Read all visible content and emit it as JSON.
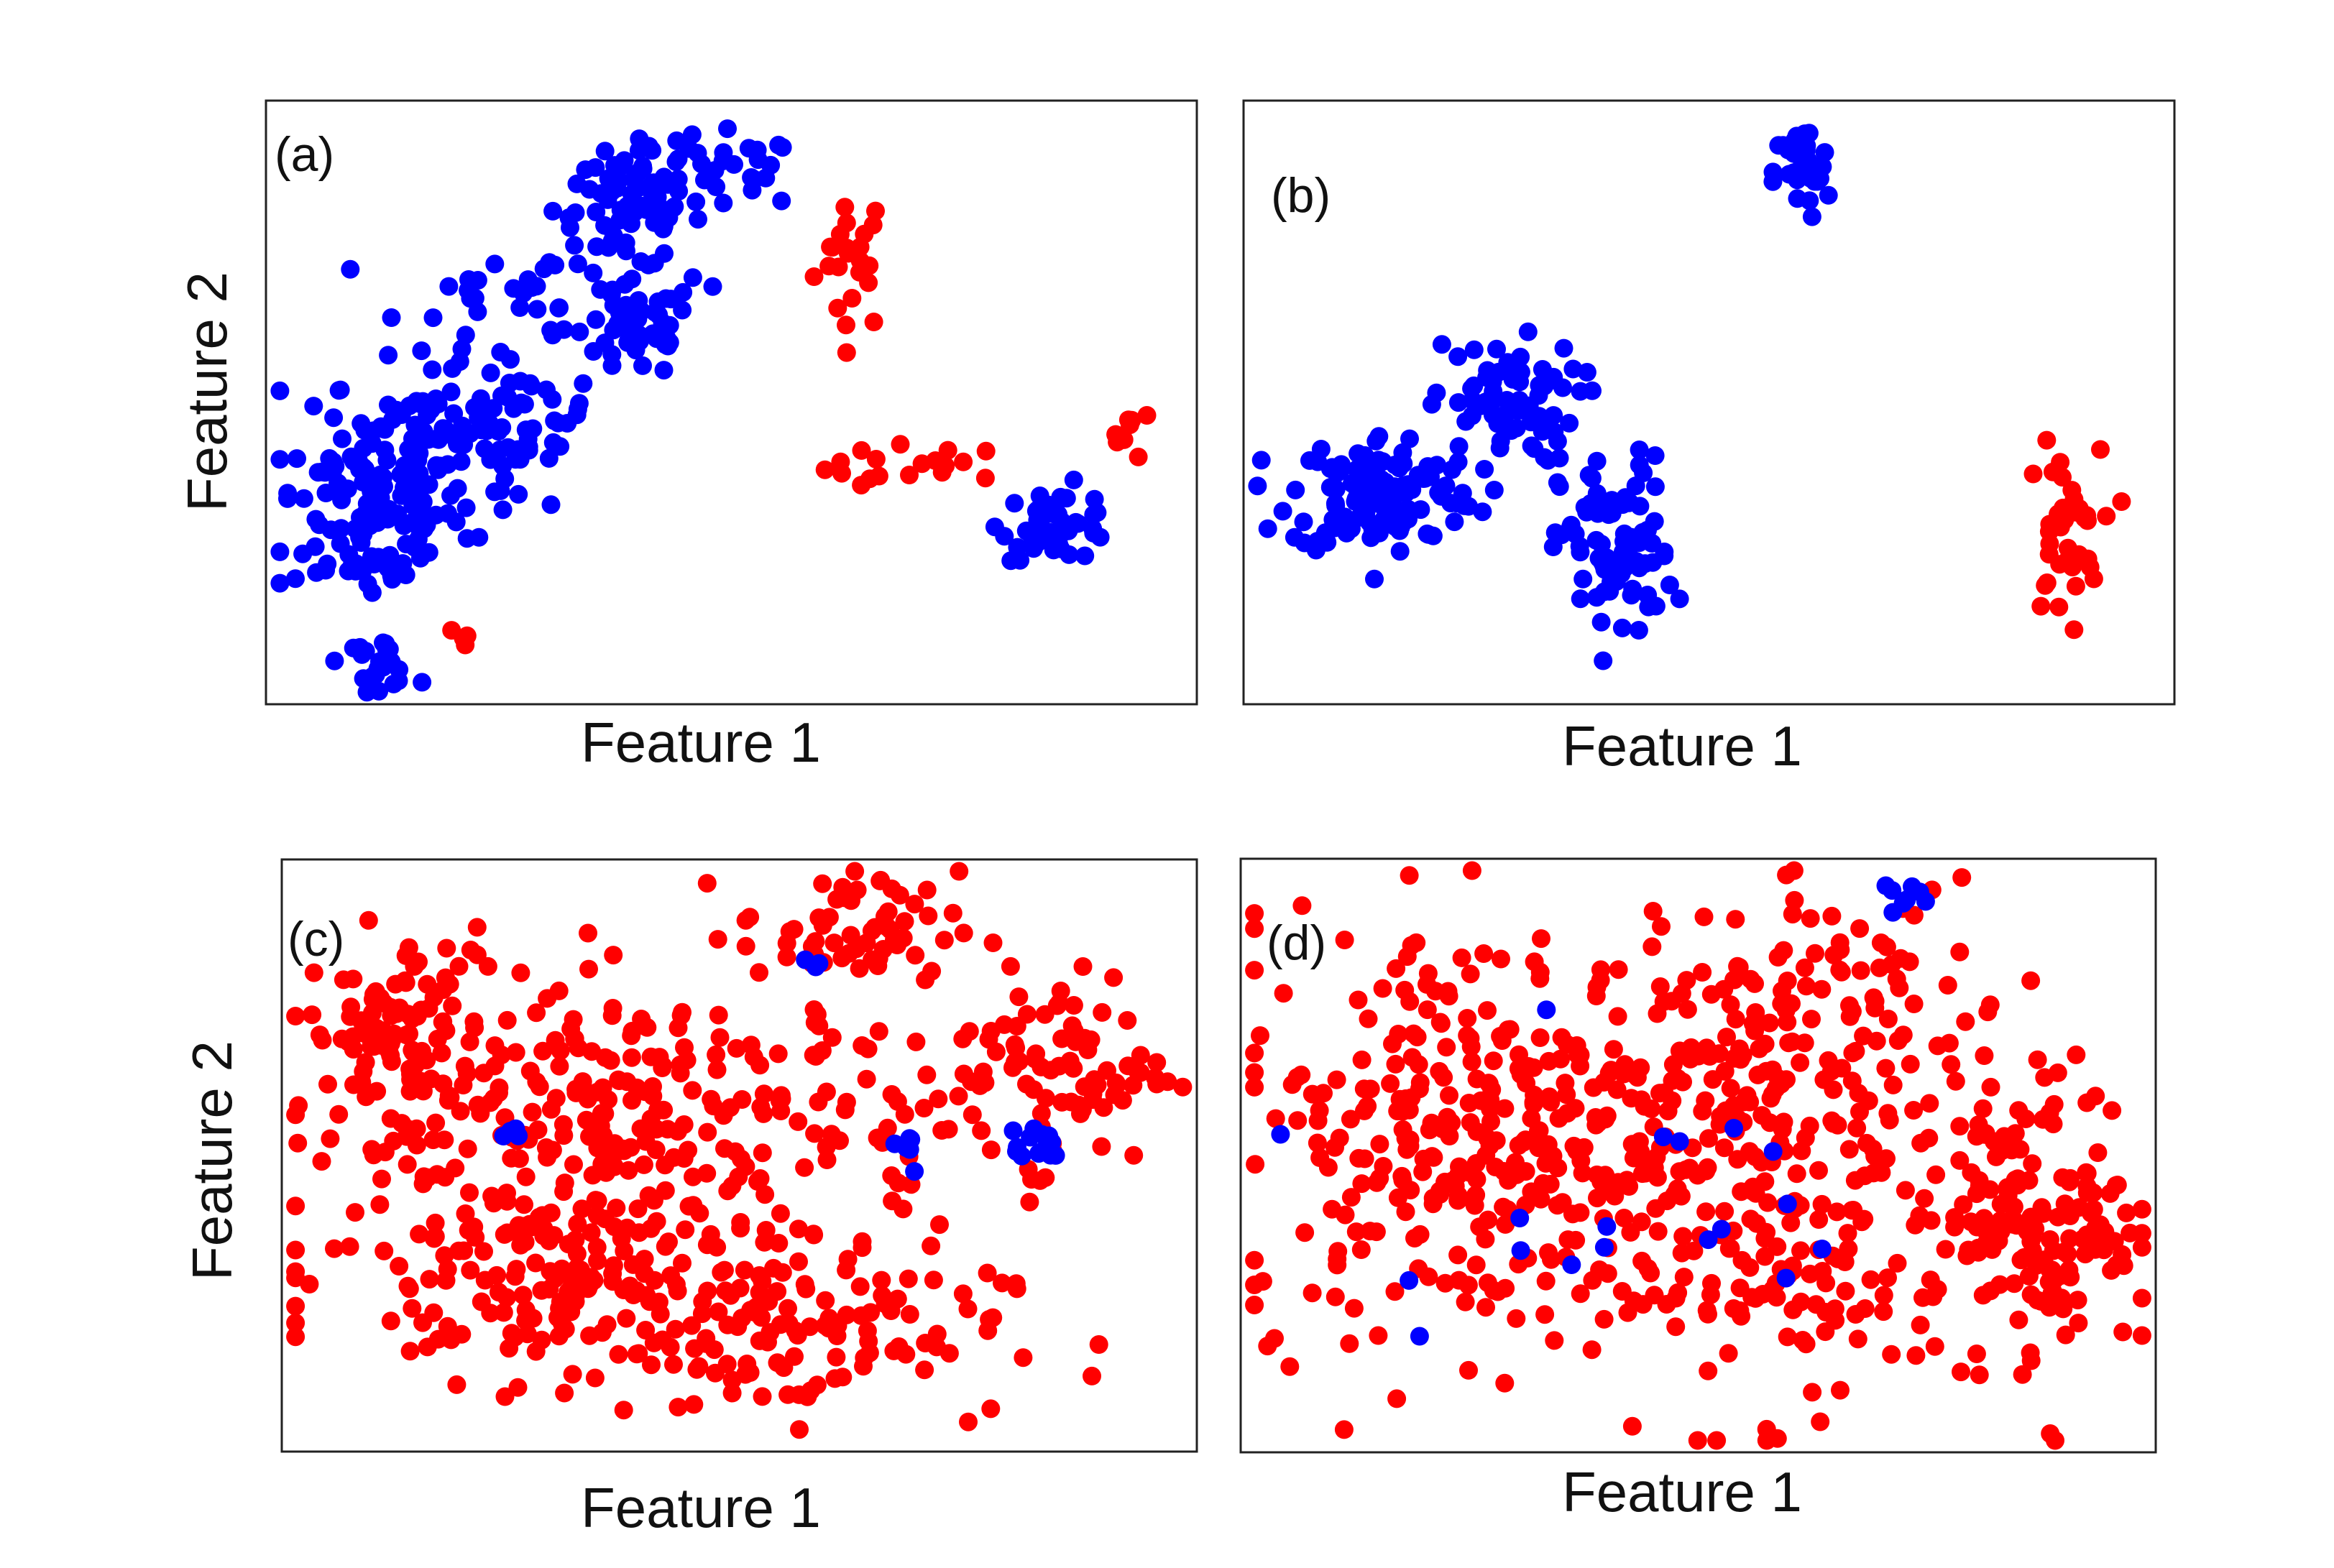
{
  "figure": {
    "panels": [
      {
        "label": "(a)",
        "xlabel": "Feature 1",
        "ylabel": "Feature 2"
      },
      {
        "label": "(b)",
        "xlabel": "Feature 1",
        "ylabel": ""
      },
      {
        "label": "(c)",
        "xlabel": "Feature 1",
        "ylabel": "Feature 2"
      },
      {
        "label": "(d)",
        "xlabel": "Feature 1",
        "ylabel": ""
      }
    ],
    "colors": {
      "class_blue": "#0000ff",
      "class_red": "#ff0000",
      "frame": "#222222"
    }
  },
  "chart_data": [
    {
      "type": "scatter",
      "panel": "(a)",
      "xlabel": "Feature 1",
      "ylabel": "Feature 2",
      "xlim": [
        0,
        100
      ],
      "ylim": [
        0,
        100
      ],
      "ticks": "none",
      "grid": false,
      "legend": "none",
      "clusters": [
        {
          "color": "blue",
          "cx": 11,
          "cy": 32,
          "sx": 5,
          "sy": 8,
          "n": 120
        },
        {
          "color": "blue",
          "cx": 17,
          "cy": 45,
          "sx": 5,
          "sy": 6,
          "n": 60
        },
        {
          "color": "blue",
          "cx": 27,
          "cy": 48,
          "sx": 4,
          "sy": 6,
          "n": 55
        },
        {
          "color": "blue",
          "cx": 39,
          "cy": 82,
          "sx": 4,
          "sy": 5,
          "n": 70
        },
        {
          "color": "blue",
          "cx": 40,
          "cy": 62,
          "sx": 3,
          "sy": 4,
          "n": 45
        },
        {
          "color": "blue",
          "cx": 48,
          "cy": 88,
          "sx": 5,
          "sy": 3,
          "n": 35
        },
        {
          "color": "blue",
          "cx": 29,
          "cy": 68,
          "sx": 7,
          "sy": 4,
          "n": 30
        },
        {
          "color": "blue",
          "cx": 85,
          "cy": 30,
          "sx": 3,
          "sy": 3,
          "n": 45
        },
        {
          "color": "blue",
          "cx": 12,
          "cy": 7,
          "sx": 2,
          "sy": 2,
          "n": 22
        },
        {
          "color": "red",
          "cx": 63,
          "cy": 74,
          "sx": 2,
          "sy": 6,
          "n": 24
        },
        {
          "color": "red",
          "cx": 70,
          "cy": 39,
          "sx": 5,
          "sy": 2,
          "n": 18
        },
        {
          "color": "red",
          "cx": 93,
          "cy": 45,
          "sx": 1,
          "sy": 2,
          "n": 8
        },
        {
          "color": "red",
          "cx": 22,
          "cy": 11,
          "sx": 1,
          "sy": 1,
          "n": 4
        }
      ]
    },
    {
      "type": "scatter",
      "panel": "(b)",
      "xlabel": "Feature 1",
      "ylim": [
        0,
        100
      ],
      "xlim": [
        0,
        100
      ],
      "ticks": "none",
      "grid": false,
      "legend": "none",
      "clusters": [
        {
          "color": "blue",
          "cx": 60,
          "cy": 88,
          "sx": 1.5,
          "sy": 4,
          "n": 35
        },
        {
          "color": "blue",
          "cx": 15,
          "cy": 35,
          "sx": 5,
          "sy": 5,
          "n": 130
        },
        {
          "color": "blue",
          "cx": 28,
          "cy": 50,
          "sx": 4,
          "sy": 5,
          "n": 70
        },
        {
          "color": "blue",
          "cx": 40,
          "cy": 25,
          "sx": 3,
          "sy": 8,
          "n": 85
        },
        {
          "color": "red",
          "cx": 88,
          "cy": 28,
          "sx": 2,
          "sy": 7,
          "n": 40
        }
      ]
    },
    {
      "type": "scatter",
      "panel": "(c)",
      "xlabel": "Feature 1",
      "ylabel": "Feature 2",
      "xlim": [
        0,
        100
      ],
      "ylim": [
        0,
        100
      ],
      "ticks": "none",
      "grid": false,
      "legend": "none",
      "clusters": [
        {
          "color": "red",
          "cx": 13,
          "cy": 70,
          "sx": 5,
          "sy": 9,
          "n": 110
        },
        {
          "color": "red",
          "cx": 40,
          "cy": 55,
          "sx": 16,
          "sy": 12,
          "n": 260
        },
        {
          "color": "red",
          "cx": 30,
          "cy": 30,
          "sx": 12,
          "sy": 9,
          "n": 160
        },
        {
          "color": "red",
          "cx": 55,
          "cy": 20,
          "sx": 12,
          "sy": 7,
          "n": 120
        },
        {
          "color": "red",
          "cx": 62,
          "cy": 88,
          "sx": 6,
          "sy": 5,
          "n": 60
        },
        {
          "color": "red",
          "cx": 85,
          "cy": 65,
          "sx": 6,
          "sy": 8,
          "n": 90
        },
        {
          "color": "blue",
          "cx": 82,
          "cy": 52,
          "sx": 2,
          "sy": 2,
          "n": 14
        },
        {
          "color": "blue",
          "cx": 68,
          "cy": 53,
          "sx": 1,
          "sy": 3,
          "n": 6
        },
        {
          "color": "blue",
          "cx": 25,
          "cy": 54,
          "sx": 1,
          "sy": 1,
          "n": 4
        },
        {
          "color": "blue",
          "cx": 58,
          "cy": 82,
          "sx": 1,
          "sy": 1,
          "n": 3
        }
      ]
    },
    {
      "type": "scatter",
      "panel": "(d)",
      "xlabel": "Feature 1",
      "xlim": [
        0,
        100
      ],
      "ylim": [
        0,
        100
      ],
      "ticks": "none",
      "grid": false,
      "legend": "none",
      "clusters": [
        {
          "color": "red",
          "cx": 25,
          "cy": 55,
          "sx": 13,
          "sy": 17,
          "n": 280
        },
        {
          "color": "red",
          "cx": 55,
          "cy": 45,
          "sx": 15,
          "sy": 19,
          "n": 330
        },
        {
          "color": "red",
          "cx": 88,
          "cy": 40,
          "sx": 5,
          "sy": 12,
          "n": 140
        },
        {
          "color": "red",
          "cx": 65,
          "cy": 80,
          "sx": 10,
          "sy": 8,
          "n": 70
        },
        {
          "color": "blue",
          "cx": 70,
          "cy": 94,
          "sx": 2,
          "sy": 1,
          "n": 8
        },
        {
          "color": "blue",
          "cx": 40,
          "cy": 45,
          "sx": 15,
          "sy": 12,
          "n": 18
        }
      ]
    }
  ]
}
